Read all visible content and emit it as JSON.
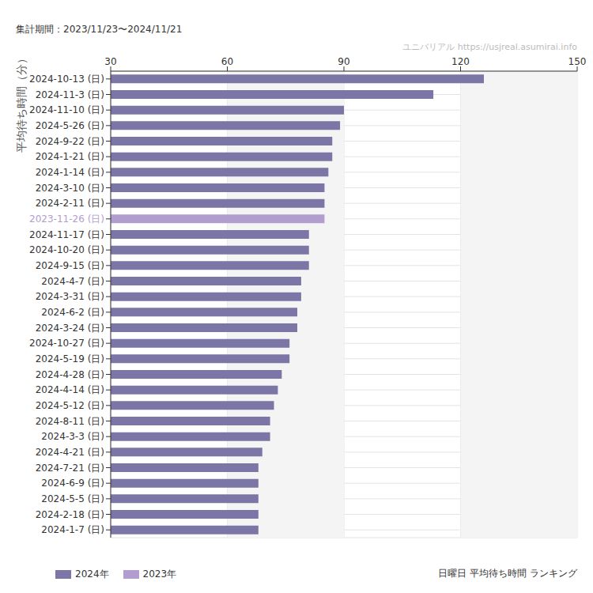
{
  "chart_data": {
    "type": "bar",
    "orientation": "horizontal",
    "stacked": true,
    "grid": true,
    "title": "日曜日 平均待ち時間 ランキング",
    "subtitle": "集計期間：2023/11/23〜2024/11/21",
    "source": "ユニバリアル  https://usjreal.asumirai.info",
    "axis_label": "平均待ち時間（分）",
    "legend": "bottom left",
    "categories": [
      "2024-10-13 (日)",
      "2024-11-3 (日)",
      "2024-11-10 (日)",
      "2024-5-26 (日)",
      "2024-9-22 (日)",
      "2024-1-21 (日)",
      "2024-1-14 (日)",
      "2024-3-10 (日)",
      "2024-2-11 (日)",
      "2023-11-26 (日)",
      "2024-11-17 (日)",
      "2024-10-20 (日)",
      "2024-9-15 (日)",
      "2024-4-7 (日)",
      "2024-3-31 (日)",
      "2024-6-2 (日)",
      "2024-3-24 (日)",
      "2024-10-27 (日)",
      "2024-5-19 (日)",
      "2024-4-28 (日)",
      "2024-4-14 (日)",
      "2024-5-12 (日)",
      "2024-8-11 (日)",
      "2024-3-3 (日)",
      "2024-4-21 (日)",
      "2024-7-21 (日)",
      "2024-6-9 (日)",
      "2024-5-5 (日)",
      "2024-2-18 (日)",
      "2024-1-7 (日)"
    ],
    "series": [
      {
        "name": "2024年",
        "color": "#7b76a6",
        "values": [
          126,
          113,
          90,
          89,
          87,
          87,
          86,
          85,
          85,
          null,
          81,
          81,
          81,
          79,
          79,
          78,
          78,
          76,
          76,
          74,
          73,
          72,
          71,
          71,
          69,
          68,
          68,
          68,
          68,
          68
        ]
      },
      {
        "name": "2023年",
        "color": "#b29dcf",
        "values": [
          null,
          null,
          null,
          null,
          null,
          null,
          null,
          null,
          null,
          85,
          null,
          null,
          null,
          null,
          null,
          null,
          null,
          null,
          null,
          null,
          null,
          null,
          null,
          null,
          null,
          null,
          null,
          null,
          null,
          null
        ]
      }
    ],
    "xlim": [
      30,
      150
    ],
    "xticks": [
      30,
      60,
      90,
      120,
      150
    ]
  }
}
